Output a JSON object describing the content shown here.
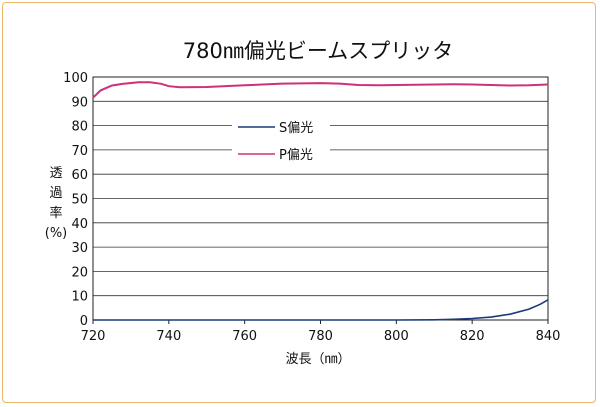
{
  "chart_data": {
    "type": "line",
    "title": "780㎚偏光ビームスプリッタ",
    "xlabel": "波長（㎚）",
    "ylabel": [
      "透",
      "過",
      "率",
      "(%)"
    ],
    "xlim": [
      720,
      840
    ],
    "ylim": [
      0,
      100
    ],
    "xticks": [
      "720",
      "740",
      "760",
      "780",
      "800",
      "820",
      "840"
    ],
    "yticks": [
      "0",
      "10",
      "20",
      "30",
      "40",
      "50",
      "60",
      "70",
      "80",
      "90",
      "100"
    ],
    "grid": "horizontal",
    "legend_position": "upper-center",
    "series": [
      {
        "name": "S偏光",
        "color": "#1a3a7a",
        "points": [
          [
            720,
            0
          ],
          [
            740,
            0
          ],
          [
            760,
            0
          ],
          [
            780,
            0
          ],
          [
            800,
            0
          ],
          [
            810,
            0.1
          ],
          [
            815,
            0.3
          ],
          [
            820,
            0.6
          ],
          [
            825,
            1.2
          ],
          [
            830,
            2.4
          ],
          [
            835,
            4.5
          ],
          [
            838,
            6.5
          ],
          [
            840,
            8.3
          ]
        ]
      },
      {
        "name": "P偏光",
        "color": "#d0307a",
        "points": [
          [
            720,
            91.5
          ],
          [
            722,
            94.5
          ],
          [
            725,
            96.5
          ],
          [
            728,
            97.2
          ],
          [
            732,
            97.8
          ],
          [
            735,
            97.8
          ],
          [
            738,
            97.2
          ],
          [
            740,
            96.2
          ],
          [
            743,
            95.8
          ],
          [
            750,
            95.9
          ],
          [
            760,
            96.6
          ],
          [
            770,
            97.3
          ],
          [
            780,
            97.5
          ],
          [
            785,
            97.3
          ],
          [
            790,
            96.7
          ],
          [
            795,
            96.6
          ],
          [
            800,
            96.7
          ],
          [
            810,
            96.9
          ],
          [
            815,
            97.0
          ],
          [
            820,
            96.9
          ],
          [
            825,
            96.7
          ],
          [
            830,
            96.5
          ],
          [
            835,
            96.6
          ],
          [
            840,
            96.9
          ]
        ]
      }
    ]
  }
}
